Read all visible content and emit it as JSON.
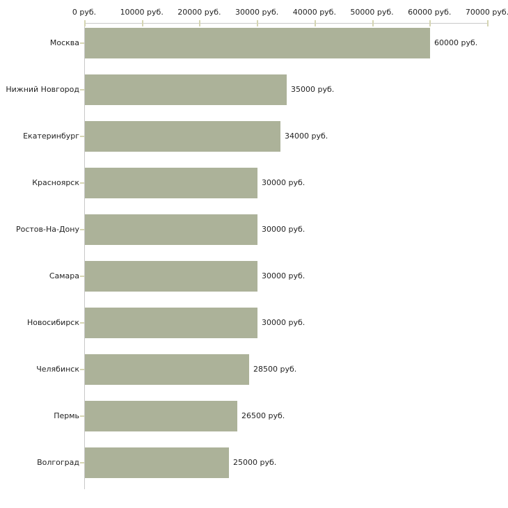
{
  "chart_data": {
    "type": "bar",
    "orientation": "horizontal",
    "title": "",
    "xlabel": "",
    "ylabel": "",
    "xlim": [
      0,
      70000
    ],
    "grid": false,
    "legend": "none",
    "categories": [
      "Москва",
      "Нижний Новгород",
      "Екатеринбург",
      "Красноярск",
      "Ростов-На-Дону",
      "Самара",
      "Новосибирск",
      "Челябинск",
      "Пермь",
      "Волгоград"
    ],
    "values": [
      60000,
      35000,
      34000,
      30000,
      30000,
      30000,
      30000,
      28500,
      26500,
      25000
    ],
    "value_labels": [
      "60000 руб.",
      "35000 руб.",
      "34000 руб.",
      "30000 руб.",
      "30000 руб.",
      "30000 руб.",
      "30000 руб.",
      "28500 руб.",
      "26500 руб.",
      "25000 руб."
    ],
    "x_tick_values": [
      0,
      10000,
      20000,
      30000,
      40000,
      50000,
      60000,
      70000
    ],
    "x_tick_labels": [
      "0 руб.",
      "10000 руб.",
      "20000 руб.",
      "30000 руб.",
      "40000 руб.",
      "50000 руб.",
      "60000 руб.",
      "70000 руб."
    ],
    "colors": {
      "bar": "#acb299",
      "axis": "#c8c8c8",
      "tick": "#d5d5b2",
      "text": "#222222",
      "background": "#ffffff"
    }
  }
}
